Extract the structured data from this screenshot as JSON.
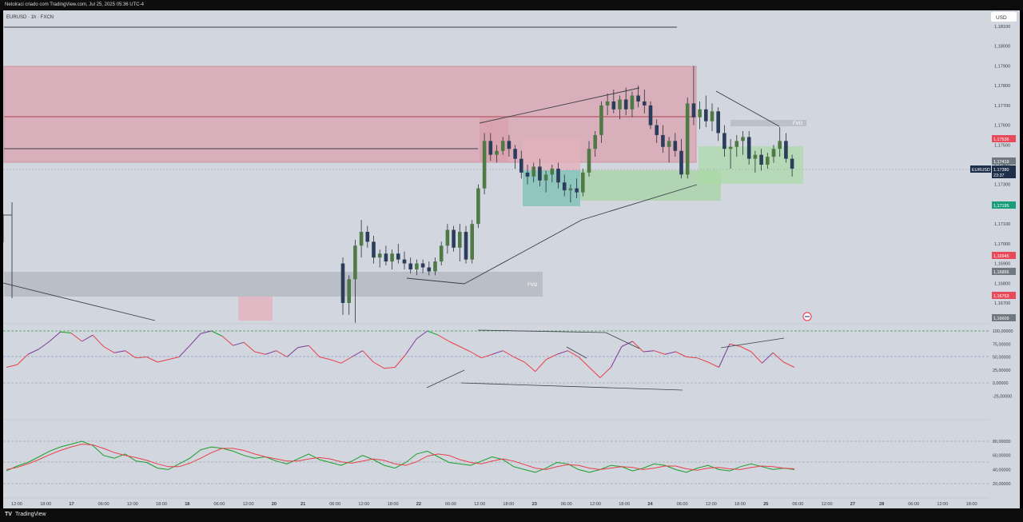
{
  "header": {
    "title": "Netolraci criado com TradingView.com, Jul 25, 2025 05:36 UTC-4"
  },
  "chart_header": {
    "symbol_line": "EURUSD · 1h · FXCN",
    "currency": "USD"
  },
  "footer": {
    "brand": "TradingView"
  },
  "colors": {
    "bull": "#4f7a46",
    "bear": "#2b3d5a",
    "rsi_up": "#7e3a9a",
    "rsi_line": "#e8404a",
    "stoch_k": "#1a9e2a",
    "stoch_d": "#e8404a"
  },
  "chart_data": {
    "type": "candlestick",
    "price_axis": {
      "ticks": [
        "1,18100",
        "1,18000",
        "1,17900",
        "1,17800",
        "1,17700",
        "1,17600",
        "1,17500",
        "1,17400",
        "1,17300",
        "1,17100",
        "1,17000",
        "1,16900",
        "1,16800",
        "1,16700"
      ],
      "badges": [
        {
          "label": "1,17536",
          "color": "#e84a5a"
        },
        {
          "label": "1,17419",
          "color": "#707880"
        },
        {
          "label": "1,17380",
          "color": "#1e2f4a"
        },
        {
          "label": "23:37",
          "color": "#1e2f4a"
        },
        {
          "label": "EURUSD",
          "color": "#1e2f4a"
        },
        {
          "label": "1,17195",
          "color": "#1a9e7a"
        },
        {
          "label": "1,16945",
          "color": "#e84a5a"
        },
        {
          "label": "1,16856",
          "color": "#707880"
        },
        {
          "label": "1,16753",
          "color": "#e84a5a"
        },
        {
          "label": "1,16609",
          "color": "#707880"
        }
      ]
    },
    "zones": [
      {
        "label": "",
        "kind": "supply"
      },
      {
        "label": "FVG",
        "kind": "fvg"
      },
      {
        "label": "FVG",
        "kind": "fvg"
      }
    ],
    "time_axis": [
      "12:00",
      "18:00",
      "17",
      "06:00",
      "12:00",
      "18:00",
      "18",
      "06:00",
      "12:00",
      "20",
      "21",
      "06:00",
      "12:00",
      "18:00",
      "22",
      "06:00",
      "12:00",
      "18:00",
      "23",
      "06:00",
      "12:00",
      "18:00",
      "24",
      "06:00",
      "12:00",
      "18:00",
      "25",
      "06:00",
      "12:00",
      "27",
      "28",
      "06:00",
      "12:00",
      "18:00"
    ],
    "rsi_axis": [
      "100,00000",
      "75,00000",
      "50,00000",
      "25,00000",
      "0,00000",
      "-25,00000"
    ],
    "stoch_axis": [
      "80,00000",
      "60,00000",
      "40,00000",
      "20,00000"
    ],
    "candles": [
      {
        "o": 1.169,
        "h": 1.1693,
        "l": 1.1664,
        "c": 1.167
      },
      {
        "o": 1.167,
        "h": 1.1684,
        "l": 1.1664,
        "c": 1.1682
      },
      {
        "o": 1.1682,
        "h": 1.1702,
        "l": 1.166,
        "c": 1.1699
      },
      {
        "o": 1.1699,
        "h": 1.1712,
        "l": 1.1693,
        "c": 1.1706
      },
      {
        "o": 1.1706,
        "h": 1.1709,
        "l": 1.1698,
        "c": 1.1701
      },
      {
        "o": 1.1701,
        "h": 1.1704,
        "l": 1.169,
        "c": 1.1693
      },
      {
        "o": 1.1693,
        "h": 1.1697,
        "l": 1.1688,
        "c": 1.1695
      },
      {
        "o": 1.1695,
        "h": 1.1699,
        "l": 1.1689,
        "c": 1.1691
      },
      {
        "o": 1.1691,
        "h": 1.1697,
        "l": 1.1687,
        "c": 1.1695
      },
      {
        "o": 1.1695,
        "h": 1.17,
        "l": 1.169,
        "c": 1.1692
      },
      {
        "o": 1.1692,
        "h": 1.1696,
        "l": 1.1687,
        "c": 1.169
      },
      {
        "o": 1.169,
        "h": 1.1693,
        "l": 1.1685,
        "c": 1.1687
      },
      {
        "o": 1.1687,
        "h": 1.1692,
        "l": 1.1684,
        "c": 1.169
      },
      {
        "o": 1.169,
        "h": 1.1692,
        "l": 1.1685,
        "c": 1.1688
      },
      {
        "o": 1.1688,
        "h": 1.1691,
        "l": 1.1684,
        "c": 1.1686
      },
      {
        "o": 1.1686,
        "h": 1.1693,
        "l": 1.1684,
        "c": 1.1691
      },
      {
        "o": 1.1691,
        "h": 1.1701,
        "l": 1.1689,
        "c": 1.1699
      },
      {
        "o": 1.1699,
        "h": 1.171,
        "l": 1.1695,
        "c": 1.1707
      },
      {
        "o": 1.1707,
        "h": 1.1709,
        "l": 1.1696,
        "c": 1.1698
      },
      {
        "o": 1.1698,
        "h": 1.171,
        "l": 1.1691,
        "c": 1.1706
      },
      {
        "o": 1.1706,
        "h": 1.1709,
        "l": 1.169,
        "c": 1.1692
      },
      {
        "o": 1.1692,
        "h": 1.1712,
        "l": 1.169,
        "c": 1.171
      },
      {
        "o": 1.171,
        "h": 1.173,
        "l": 1.1708,
        "c": 1.1728
      },
      {
        "o": 1.1728,
        "h": 1.1756,
        "l": 1.1725,
        "c": 1.1752
      },
      {
        "o": 1.1752,
        "h": 1.1756,
        "l": 1.1742,
        "c": 1.1745
      },
      {
        "o": 1.1745,
        "h": 1.175,
        "l": 1.1741,
        "c": 1.1747
      },
      {
        "o": 1.1747,
        "h": 1.1754,
        "l": 1.1745,
        "c": 1.1752
      },
      {
        "o": 1.1752,
        "h": 1.1755,
        "l": 1.1744,
        "c": 1.1748
      },
      {
        "o": 1.1748,
        "h": 1.175,
        "l": 1.1738,
        "c": 1.1743
      },
      {
        "o": 1.1743,
        "h": 1.1747,
        "l": 1.1733,
        "c": 1.1736
      },
      {
        "o": 1.1736,
        "h": 1.174,
        "l": 1.173,
        "c": 1.1734
      },
      {
        "o": 1.1734,
        "h": 1.1741,
        "l": 1.1731,
        "c": 1.1739
      },
      {
        "o": 1.1739,
        "h": 1.1743,
        "l": 1.1729,
        "c": 1.1732
      },
      {
        "o": 1.1732,
        "h": 1.1737,
        "l": 1.1726,
        "c": 1.1735
      },
      {
        "o": 1.1735,
        "h": 1.174,
        "l": 1.1731,
        "c": 1.1738
      },
      {
        "o": 1.1738,
        "h": 1.1741,
        "l": 1.1728,
        "c": 1.1731
      },
      {
        "o": 1.1731,
        "h": 1.1735,
        "l": 1.1724,
        "c": 1.1727
      },
      {
        "o": 1.1727,
        "h": 1.173,
        "l": 1.1721,
        "c": 1.1728
      },
      {
        "o": 1.1728,
        "h": 1.1733,
        "l": 1.1723,
        "c": 1.1726
      },
      {
        "o": 1.1726,
        "h": 1.1738,
        "l": 1.1724,
        "c": 1.1736
      },
      {
        "o": 1.1736,
        "h": 1.1752,
        "l": 1.1734,
        "c": 1.1748
      },
      {
        "o": 1.1748,
        "h": 1.1757,
        "l": 1.1744,
        "c": 1.1755
      },
      {
        "o": 1.1755,
        "h": 1.1772,
        "l": 1.1751,
        "c": 1.177
      },
      {
        "o": 1.177,
        "h": 1.1776,
        "l": 1.1765,
        "c": 1.1772
      },
      {
        "o": 1.1772,
        "h": 1.1778,
        "l": 1.1766,
        "c": 1.1768
      },
      {
        "o": 1.1768,
        "h": 1.1775,
        "l": 1.1763,
        "c": 1.1773
      },
      {
        "o": 1.1773,
        "h": 1.1779,
        "l": 1.1765,
        "c": 1.1768
      },
      {
        "o": 1.1768,
        "h": 1.1777,
        "l": 1.1764,
        "c": 1.1775
      },
      {
        "o": 1.1775,
        "h": 1.178,
        "l": 1.1769,
        "c": 1.1772
      },
      {
        "o": 1.1772,
        "h": 1.1778,
        "l": 1.1766,
        "c": 1.177
      },
      {
        "o": 1.177,
        "h": 1.1772,
        "l": 1.1758,
        "c": 1.176
      },
      {
        "o": 1.176,
        "h": 1.1763,
        "l": 1.1751,
        "c": 1.1755
      },
      {
        "o": 1.1755,
        "h": 1.176,
        "l": 1.1746,
        "c": 1.1749
      },
      {
        "o": 1.1749,
        "h": 1.1754,
        "l": 1.1741,
        "c": 1.1752
      },
      {
        "o": 1.1752,
        "h": 1.1756,
        "l": 1.1744,
        "c": 1.1747
      },
      {
        "o": 1.1747,
        "h": 1.1753,
        "l": 1.1733,
        "c": 1.1735
      },
      {
        "o": 1.1735,
        "h": 1.1774,
        "l": 1.1733,
        "c": 1.1771
      },
      {
        "o": 1.1771,
        "h": 1.179,
        "l": 1.176,
        "c": 1.1764
      },
      {
        "o": 1.1764,
        "h": 1.1772,
        "l": 1.1758,
        "c": 1.1768
      },
      {
        "o": 1.1768,
        "h": 1.1775,
        "l": 1.1759,
        "c": 1.1762
      },
      {
        "o": 1.1762,
        "h": 1.1771,
        "l": 1.1757,
        "c": 1.1767
      },
      {
        "o": 1.1767,
        "h": 1.1769,
        "l": 1.1752,
        "c": 1.1756
      },
      {
        "o": 1.1756,
        "h": 1.176,
        "l": 1.1744,
        "c": 1.1748
      },
      {
        "o": 1.1748,
        "h": 1.1753,
        "l": 1.1738,
        "c": 1.1749
      },
      {
        "o": 1.1749,
        "h": 1.1755,
        "l": 1.1744,
        "c": 1.1752
      },
      {
        "o": 1.1752,
        "h": 1.1757,
        "l": 1.1745,
        "c": 1.1754
      },
      {
        "o": 1.1754,
        "h": 1.1757,
        "l": 1.174,
        "c": 1.1743
      },
      {
        "o": 1.1743,
        "h": 1.1747,
        "l": 1.1736,
        "c": 1.1745
      },
      {
        "o": 1.1745,
        "h": 1.1748,
        "l": 1.1737,
        "c": 1.174
      },
      {
        "o": 1.174,
        "h": 1.1746,
        "l": 1.1738,
        "c": 1.1744
      },
      {
        "o": 1.1744,
        "h": 1.175,
        "l": 1.1741,
        "c": 1.1748
      },
      {
        "o": 1.1748,
        "h": 1.1759,
        "l": 1.1744,
        "c": 1.1752
      },
      {
        "o": 1.1752,
        "h": 1.1756,
        "l": 1.1741,
        "c": 1.1743
      },
      {
        "o": 1.1743,
        "h": 1.1745,
        "l": 1.1734,
        "c": 1.1738
      }
    ],
    "rsi": [
      30,
      35,
      55,
      65,
      80,
      98,
      96,
      80,
      92,
      70,
      58,
      62,
      48,
      50,
      40,
      45,
      50,
      72,
      95,
      100,
      90,
      72,
      78,
      60,
      55,
      62,
      50,
      68,
      72,
      50,
      45,
      38,
      50,
      62,
      40,
      28,
      30,
      55,
      85,
      100,
      92,
      80,
      70,
      60,
      48,
      55,
      62,
      50,
      40,
      22,
      45,
      55,
      62,
      50,
      30,
      10,
      30,
      70,
      80,
      60,
      62,
      55,
      60,
      50,
      48,
      40,
      30,
      75,
      70,
      60,
      38,
      58,
      40,
      30
    ],
    "stoch_k": [
      38,
      45,
      50,
      58,
      66,
      72,
      76,
      80,
      74,
      60,
      56,
      62,
      52,
      50,
      42,
      40,
      48,
      56,
      68,
      72,
      70,
      66,
      60,
      56,
      58,
      52,
      48,
      55,
      62,
      54,
      50,
      46,
      52,
      60,
      54,
      46,
      42,
      50,
      62,
      66,
      58,
      50,
      48,
      46,
      52,
      58,
      54,
      44,
      40,
      36,
      42,
      50,
      48,
      40,
      36,
      40,
      46,
      44,
      38,
      42,
      48,
      46,
      40,
      36,
      42,
      46,
      40,
      38,
      44,
      48,
      44,
      40,
      42,
      40
    ],
    "stoch_d": [
      40,
      43,
      48,
      54,
      61,
      67,
      72,
      76,
      75,
      70,
      64,
      60,
      57,
      53,
      48,
      44,
      44,
      49,
      56,
      64,
      70,
      70,
      67,
      62,
      58,
      55,
      52,
      52,
      55,
      57,
      55,
      51,
      49,
      52,
      55,
      53,
      48,
      46,
      51,
      59,
      62,
      60,
      54,
      50,
      48,
      52,
      55,
      52,
      47,
      42,
      40,
      44,
      47,
      46,
      42,
      40,
      42,
      44,
      43,
      40,
      42,
      45,
      45,
      41,
      39,
      42,
      43,
      41,
      40,
      43,
      45,
      44,
      42,
      41
    ]
  }
}
